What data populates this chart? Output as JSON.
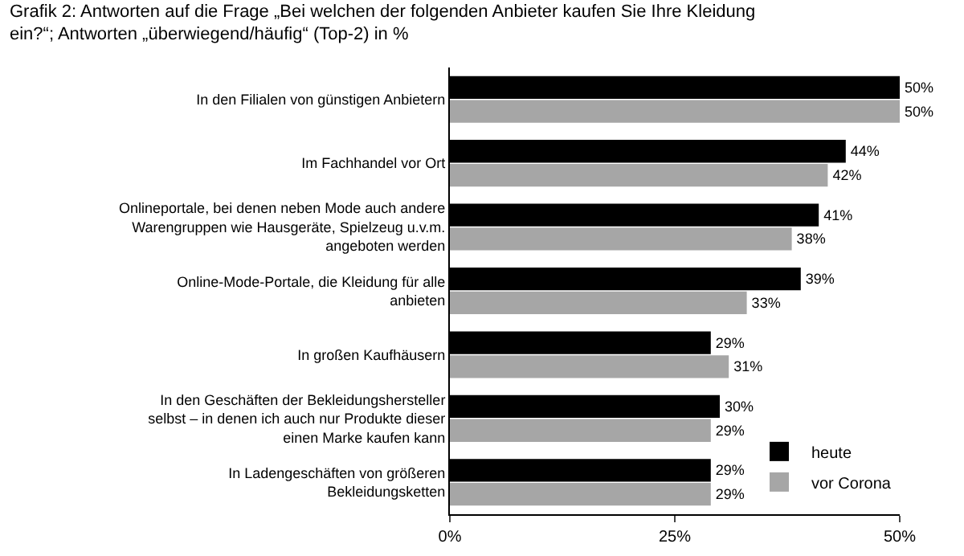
{
  "chart_data": {
    "type": "bar",
    "orientation": "horizontal",
    "title": "Grafik 2: Antworten auf die Frage „Bei welchen der folgenden Anbieter kaufen Sie Ihre Kleidung ein?“; Antworten „überwiegend/häufig“ (Top-2) in %",
    "categories": [
      "In den Filialen von günstigen Anbietern",
      "Im Fachhandel vor Ort",
      "Onlineportale, bei denen neben Mode auch andere Warengruppen wie Hausgeräte, Spielzeug u.v.m. angeboten werden",
      "Online-Mode-Portale, die Kleidung für alle anbieten",
      "In großen Kaufhäusern",
      "In den Geschäften der Bekleidungshersteller selbst – in denen ich auch nur Produkte dieser einen Marke kaufen kann",
      "In Ladengeschäften von größeren Bekleidungsketten"
    ],
    "series": [
      {
        "name": "heute",
        "color": "#000000",
        "values": [
          50,
          44,
          41,
          39,
          29,
          30,
          29
        ],
        "value_labels": [
          "50%",
          "44%",
          "41%",
          "39%",
          "29%",
          "30%",
          "29%"
        ]
      },
      {
        "name": "vor Corona",
        "color": "#a6a6a6",
        "values": [
          50,
          42,
          38,
          33,
          31,
          29,
          29
        ],
        "value_labels": [
          "50%",
          "42%",
          "38%",
          "33%",
          "31%",
          "29%",
          "29%"
        ]
      }
    ],
    "xlim": [
      0,
      50
    ],
    "xticks": [
      {
        "value": 0,
        "label": "0%"
      },
      {
        "value": 25,
        "label": "25%"
      },
      {
        "value": 50,
        "label": "50%"
      }
    ],
    "legend": "bottom right"
  }
}
